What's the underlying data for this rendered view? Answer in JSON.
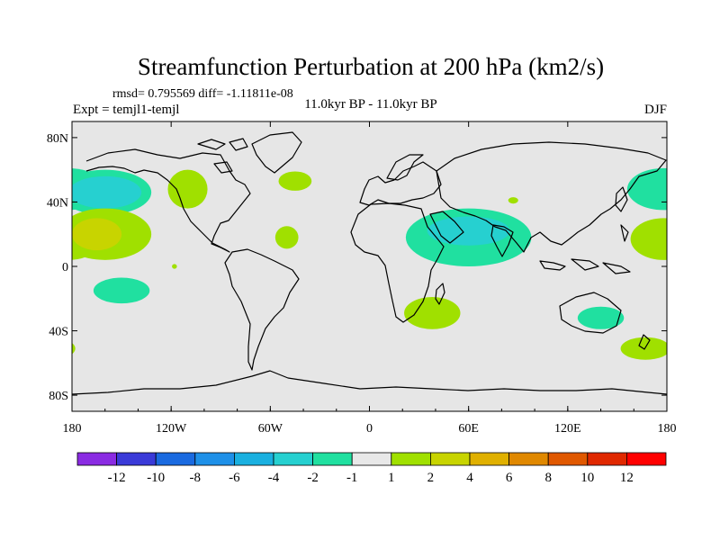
{
  "chart_data": {
    "type": "map-contour",
    "title": "Streamfunction Perturbation at 200 hPa (km2/s)",
    "stats_text": "rmsd= 0.795569 diff= -1.11811e-08",
    "left_label": "Expt = temjl1-temjl",
    "center_label": "11.0kyr BP - 11.0kyr BP",
    "right_label": "DJF",
    "x_ticks": [
      "180",
      "120W",
      "60W",
      "0",
      "60E",
      "120E",
      "180"
    ],
    "x_tick_values": [
      -180,
      -120,
      -60,
      0,
      60,
      120,
      180
    ],
    "y_ticks": [
      "80N",
      "40N",
      "0",
      "40S",
      "80S"
    ],
    "y_tick_values": [
      80,
      40,
      0,
      -40,
      -80
    ],
    "lon_range": [
      -180,
      180
    ],
    "lat_range": [
      -90,
      90
    ],
    "colorbar": {
      "labels": [
        "-12",
        "-10",
        "-8",
        "-6",
        "-4",
        "-2",
        "-1",
        "1",
        "2",
        "4",
        "6",
        "8",
        "10",
        "12"
      ],
      "colors": [
        "#8a2be2",
        "#3a3ad8",
        "#1a6ae0",
        "#1e90e8",
        "#1ab0e0",
        "#26d0d0",
        "#20e0a0",
        "#e8e8e8",
        "#a0e000",
        "#c8d400",
        "#e0b000",
        "#e08800",
        "#e05800",
        "#e02800",
        "#ff0000"
      ]
    },
    "anomalies": [
      {
        "sign": "negative",
        "level": -2,
        "lon": -160,
        "lat": 46,
        "dlon": 22,
        "dlat": 10
      },
      {
        "sign": "negative",
        "level": -1,
        "lon": -160,
        "lat": 46,
        "dlon": 28,
        "dlat": 14
      },
      {
        "sign": "positive",
        "level": 4,
        "lon": -165,
        "lat": 20,
        "dlon": 15,
        "dlat": 10
      },
      {
        "sign": "positive",
        "level": 2,
        "lon": -160,
        "lat": 20,
        "dlon": 28,
        "dlat": 16
      },
      {
        "sign": "positive",
        "level": 2,
        "lon": -110,
        "lat": 48,
        "dlon": 12,
        "dlat": 12
      },
      {
        "sign": "positive",
        "level": 2,
        "lon": -45,
        "lat": 53,
        "dlon": 10,
        "dlat": 6
      },
      {
        "sign": "positive",
        "level": 2,
        "lon": -50,
        "lat": 18,
        "dlon": 7,
        "dlat": 7
      },
      {
        "sign": "negative",
        "level": -1,
        "lon": -150,
        "lat": -15,
        "dlon": 17,
        "dlat": 8
      },
      {
        "sign": "negative",
        "level": -2,
        "lon": 60,
        "lat": 22,
        "dlon": 25,
        "dlat": 9
      },
      {
        "sign": "negative",
        "level": -1,
        "lon": 60,
        "lat": 18,
        "dlon": 38,
        "dlat": 18
      },
      {
        "sign": "positive",
        "level": 2,
        "lon": 87,
        "lat": 41,
        "dlon": 3,
        "dlat": 2
      },
      {
        "sign": "positive",
        "level": 2,
        "lon": 38,
        "lat": -29,
        "dlon": 17,
        "dlat": 10
      },
      {
        "sign": "negative",
        "level": -1,
        "lon": 140,
        "lat": -32,
        "dlon": 14,
        "dlat": 7
      },
      {
        "sign": "positive",
        "level": 2,
        "lon": 167,
        "lat": -51,
        "dlon": 15,
        "dlat": 7
      },
      {
        "sign": "negative",
        "level": -1,
        "lon": 178,
        "lat": 48,
        "dlon": 22,
        "dlat": 13
      },
      {
        "sign": "positive",
        "level": 2,
        "lon": 178,
        "lat": 17,
        "dlon": 20,
        "dlat": 13
      },
      {
        "sign": "positive",
        "level": 2,
        "lon": -118,
        "lat": 0,
        "dlon": 1.5,
        "dlat": 1.5
      }
    ]
  }
}
